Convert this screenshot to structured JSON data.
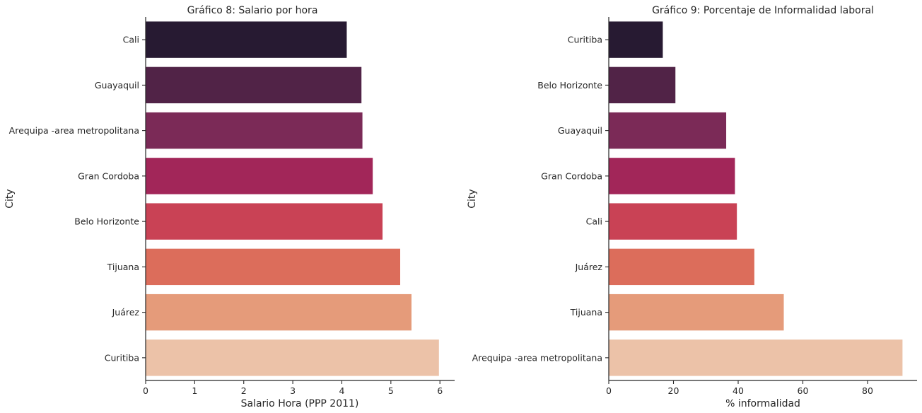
{
  "palette": [
    "#271a32",
    "#512347",
    "#7b2a57",
    "#a22659",
    "#c94255",
    "#dc6d5b",
    "#e59b7a",
    "#ecc2a8"
  ],
  "chart_data": [
    {
      "type": "bar",
      "orientation": "horizontal",
      "title": "Gráfico 8: Salario por hora",
      "xlabel": "Salario Hora (PPP 2011)",
      "ylabel": "City",
      "categories": [
        "Cali",
        "Guayaquil",
        "Arequipa -area metropolitana",
        "Gran Cordoba",
        "Belo Horizonte",
        "Tijuana",
        "Juárez",
        "Curitiba"
      ],
      "values": [
        4.1,
        4.4,
        4.42,
        4.63,
        4.83,
        5.19,
        5.42,
        5.98
      ],
      "xlim": [
        0,
        6.3
      ],
      "xticks": [
        0,
        1,
        2,
        3,
        4,
        5,
        6
      ],
      "grid": false
    },
    {
      "type": "bar",
      "orientation": "horizontal",
      "title": "Gráfico 9: Porcentaje de Informalidad laboral",
      "xlabel": "% informalidad",
      "ylabel": "City",
      "categories": [
        "Curitiba",
        "Belo Horizonte",
        "Guayaquil",
        "Gran Cordoba",
        "Cali",
        "Juárez",
        "Tijuana",
        "Arequipa -area metropolitana"
      ],
      "values": [
        16.7,
        20.6,
        36.3,
        39.0,
        39.6,
        45.0,
        54.1,
        90.8
      ],
      "xlim": [
        0,
        95.3
      ],
      "xticks": [
        0,
        20,
        40,
        60,
        80
      ],
      "grid": false
    }
  ]
}
